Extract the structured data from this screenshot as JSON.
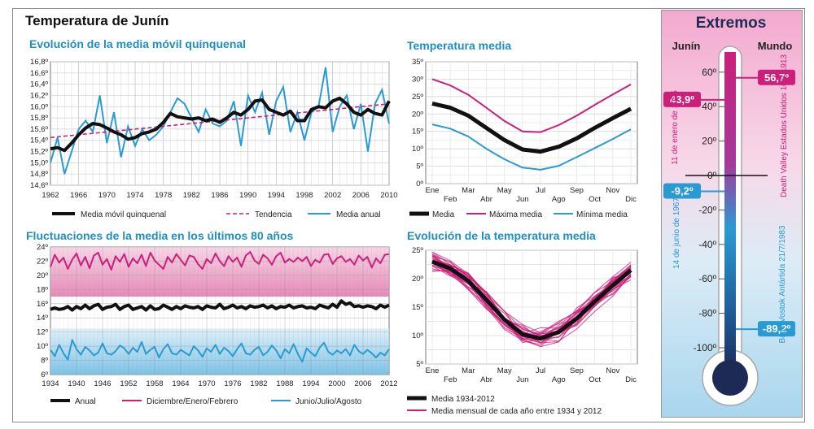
{
  "main_title": "Temperatura de Junín",
  "colors": {
    "black": "#111111",
    "pink": "#cc1f7a",
    "blue": "#2a9ad2",
    "title_blue": "#1d8fc0",
    "navy": "#1c2a55"
  },
  "chart_data": [
    {
      "id": "media_movil",
      "type": "line",
      "title": "Evolución de la media móvil quinquenal",
      "ylim": [
        14.6,
        16.8
      ],
      "y_ticks": [
        "14,6º",
        "14,8º",
        "15,0º",
        "15,2º",
        "15,4º",
        "15,6º",
        "15,8º",
        "16,0º",
        "16,2º",
        "16,4º",
        "16,6º",
        "16,8º"
      ],
      "x_ticks": [
        "1962",
        "1966",
        "1970",
        "1974",
        "1978",
        "1982",
        "1986",
        "1990",
        "1994",
        "1998",
        "2002",
        "2006",
        "2010"
      ],
      "xlim": [
        1962,
        2010
      ],
      "series": [
        {
          "name": "Media móvil quinquenal",
          "color": "#111111",
          "x": [
            1962,
            1963,
            1964,
            1965,
            1966,
            1967,
            1968,
            1969,
            1970,
            1971,
            1972,
            1973,
            1974,
            1975,
            1976,
            1977,
            1978,
            1979,
            1980,
            1981,
            1982,
            1983,
            1984,
            1985,
            1986,
            1987,
            1988,
            1989,
            1990,
            1991,
            1992,
            1993,
            1994,
            1995,
            1996,
            1997,
            1998,
            1999,
            2000,
            2001,
            2002,
            2003,
            2004,
            2005,
            2006,
            2007,
            2008,
            2009,
            2010
          ],
          "y": [
            15.25,
            15.27,
            15.22,
            15.35,
            15.5,
            15.62,
            15.7,
            15.68,
            15.62,
            15.55,
            15.5,
            15.42,
            15.45,
            15.52,
            15.55,
            15.6,
            15.72,
            15.88,
            15.82,
            15.8,
            15.78,
            15.8,
            15.75,
            15.78,
            15.72,
            15.8,
            15.9,
            15.85,
            15.95,
            16.1,
            16.12,
            15.95,
            15.9,
            15.85,
            15.92,
            15.75,
            15.75,
            15.95,
            16.0,
            15.98,
            16.1,
            16.15,
            16.05,
            15.9,
            15.85,
            15.95,
            15.88,
            15.85,
            16.1
          ]
        },
        {
          "name": "Tendencia",
          "color": "#cc1f7a",
          "x": [
            1962,
            2010
          ],
          "y": [
            15.45,
            16.05
          ]
        },
        {
          "name": "Media anual",
          "color": "#2a9ad2",
          "x": [
            1962,
            1963,
            1964,
            1965,
            1966,
            1967,
            1968,
            1969,
            1970,
            1971,
            1972,
            1973,
            1974,
            1975,
            1976,
            1977,
            1978,
            1979,
            1980,
            1981,
            1982,
            1983,
            1984,
            1985,
            1986,
            1987,
            1988,
            1989,
            1990,
            1991,
            1992,
            1993,
            1994,
            1995,
            1996,
            1997,
            1998,
            1999,
            2000,
            2001,
            2002,
            2003,
            2004,
            2005,
            2006,
            2007,
            2008,
            2009,
            2010
          ],
          "y": [
            15.0,
            15.45,
            14.8,
            15.2,
            15.6,
            15.75,
            15.55,
            16.2,
            15.35,
            15.9,
            15.1,
            15.65,
            15.3,
            15.6,
            15.4,
            15.5,
            15.65,
            15.9,
            16.15,
            16.05,
            15.8,
            15.55,
            15.95,
            15.7,
            15.65,
            15.75,
            16.1,
            15.3,
            16.2,
            15.9,
            16.25,
            15.5,
            16.1,
            16.35,
            15.55,
            15.9,
            15.4,
            15.9,
            16.0,
            16.7,
            15.55,
            16.0,
            16.2,
            15.6,
            16.05,
            15.2,
            16.05,
            16.3,
            15.7
          ]
        }
      ]
    },
    {
      "id": "temperatura_media",
      "type": "line",
      "title": "Temperatura media",
      "ylim": [
        0,
        35
      ],
      "y_ticks": [
        "0º",
        "5º",
        "10º",
        "15º",
        "20º",
        "25º",
        "30º",
        "35º"
      ],
      "categories": [
        "Ene",
        "Feb",
        "Mar",
        "Abr",
        "May",
        "Jun",
        "Jul",
        "Ago",
        "Sep",
        "Oct",
        "Nov",
        "Dic"
      ],
      "series": [
        {
          "name": "Media",
          "color": "#111111",
          "values": [
            23,
            21.8,
            19.5,
            16,
            12.5,
            9.8,
            9.2,
            10.6,
            13,
            16,
            18.8,
            21.5
          ]
        },
        {
          "name": "Máxima media",
          "color": "#cc1f7a",
          "values": [
            30,
            28.2,
            25.5,
            21.8,
            18,
            15,
            14.8,
            16.8,
            19.5,
            22.6,
            25.6,
            28.5
          ]
        },
        {
          "name": "Mínima media",
          "color": "#2a9ad2",
          "values": [
            17,
            15.8,
            13.5,
            10,
            7,
            4.6,
            4,
            5.1,
            7.6,
            10.2,
            12.8,
            15.6
          ]
        }
      ]
    },
    {
      "id": "fluctuaciones",
      "type": "line",
      "title": "Fluctuaciones de la media en los últimos 80 años",
      "ylim": [
        6,
        24
      ],
      "y_ticks": [
        "6º",
        "8º",
        "10º",
        "12º",
        "14º",
        "16º",
        "18º",
        "20º",
        "22º",
        "24º"
      ],
      "x_ticks": [
        "1934",
        "1940",
        "1946",
        "1952",
        "1958",
        "1964",
        "1970",
        "1976",
        "1982",
        "1988",
        "1994",
        "2000",
        "2006",
        "2012"
      ],
      "xlim": [
        1934,
        2012
      ],
      "series": [
        {
          "name": "Anual",
          "color": "#111111",
          "x_start": 1934,
          "values": [
            15.2,
            15.4,
            15.2,
            15.3,
            15.6,
            15.1,
            15.6,
            15.3,
            15.8,
            15.3,
            15.7,
            15.9,
            15.2,
            15.5,
            15.6,
            15.9,
            15.2,
            15.6,
            15.8,
            15.2,
            15.4,
            15.6,
            15.1,
            15.7,
            15.2,
            15.3,
            15.8,
            15.5,
            15.2,
            15.6,
            15.3,
            15.7,
            15.5,
            15.4,
            15.6,
            15.2,
            15.7,
            15.5,
            15.4,
            15.9,
            15.3,
            15.5,
            15.8,
            15.4,
            15.6,
            15.3,
            15.7,
            15.5,
            15.6,
            15.8,
            15.4,
            15.7,
            15.3,
            15.6,
            15.5,
            15.8,
            15.4,
            15.6,
            15.7,
            15.4,
            15.5,
            15.3,
            15.8,
            15.6,
            15.4,
            15.9,
            15.5,
            16.4,
            15.9,
            16.1,
            15.6,
            15.7,
            15.5,
            15.7,
            15.6,
            15.3,
            15.8,
            15.5,
            15.8
          ]
        },
        {
          "name": "Diciembre/Enero/Febrero",
          "color": "#cc1f7a",
          "x_start": 1934,
          "values": [
            21.2,
            22.9,
            21.8,
            22.5,
            20.9,
            22.2,
            23.1,
            21.4,
            22.6,
            21.0,
            22.8,
            23.2,
            21.5,
            22.3,
            20.8,
            22.7,
            21.9,
            23.0,
            21.2,
            22.4,
            21.7,
            22.9,
            21.3,
            23.2,
            22.1,
            21.5,
            20.9,
            22.6,
            21.8,
            23.0,
            22.2,
            21.4,
            22.8,
            22.6,
            21.6,
            20.9,
            22.3,
            21.7,
            23.1,
            22.0,
            21.3,
            22.7,
            21.9,
            22.5,
            21.2,
            22.8,
            23.3,
            22.1,
            21.6,
            22.9,
            22.4,
            21.5,
            22.7,
            23.2,
            21.8,
            22.3,
            21.9,
            22.5,
            22.0,
            22.6,
            21.3,
            22.2,
            21.8,
            22.9,
            23.0,
            21.6,
            22.4,
            22.7,
            21.9,
            22.3,
            21.5,
            22.8,
            22.1,
            22.6,
            21.1,
            22.4,
            21.7,
            22.9,
            23.0
          ]
        },
        {
          "name": "Junio/Julio/Agosto",
          "color": "#2a9ad2",
          "x_start": 1934,
          "values": [
            9.5,
            8.6,
            10.2,
            9.0,
            8.1,
            10.9,
            9.6,
            8.8,
            9.9,
            9.4,
            8.7,
            9.1,
            10.4,
            9.0,
            8.8,
            9.3,
            10.1,
            9.7,
            8.9,
            9.8,
            9.2,
            10.6,
            8.9,
            9.5,
            9.9,
            8.4,
            9.6,
            10.3,
            9.0,
            8.8,
            9.5,
            9.1,
            8.7,
            10.0,
            9.4,
            8.5,
            9.7,
            9.2,
            10.2,
            8.9,
            9.8,
            9.3,
            8.6,
            9.6,
            10.4,
            9.0,
            8.8,
            9.5,
            9.9,
            8.7,
            9.2,
            10.1,
            9.4,
            8.3,
            9.6,
            9.0,
            10.3,
            8.9,
            7.8,
            9.7,
            9.1,
            8.6,
            9.8,
            10.5,
            9.2,
            8.8,
            9.4,
            9.0,
            9.6,
            8.7,
            10.2,
            9.3,
            8.9,
            9.5,
            9.0,
            8.4,
            9.1,
            8.7,
            9.6
          ]
        }
      ]
    },
    {
      "id": "evolucion",
      "type": "line",
      "title": "Evolución de la temperatura media",
      "ylim": [
        5,
        25
      ],
      "y_ticks": [
        "5º",
        "10º",
        "15º",
        "20º",
        "25º"
      ],
      "categories": [
        "Ene",
        "Feb",
        "Mar",
        "Abr",
        "May",
        "Jun",
        "Jul",
        "Ago",
        "Sep",
        "Oct",
        "Nov",
        "Dic"
      ],
      "series": [
        {
          "name": "Media 1934-2012",
          "color": "#111111",
          "values": [
            23,
            21.8,
            19.6,
            16.3,
            12.8,
            10.2,
            9.5,
            10.6,
            13.0,
            16.0,
            18.8,
            21.5
          ]
        },
        {
          "name": "Media mensual de cada año entre 1934 y 2012",
          "color": "#cc1f7a",
          "spread": 1.8
        }
      ]
    }
  ],
  "extremos": {
    "title": "Extremos",
    "left_label": "Junín",
    "right_label": "Mundo",
    "scale": [
      "60º",
      "40º",
      "20º",
      "0º",
      "-20º",
      "-40º",
      "-60º",
      "-80º",
      "-100º"
    ],
    "max_junin": {
      "value": "43,9º",
      "date": "11 de enero de 1955",
      "num": 43.9
    },
    "min_junin": {
      "value": "-9,2º",
      "date": "14 de junio de 1967",
      "num": -9.2
    },
    "max_mundo": {
      "value": "56,7º",
      "place": "Death Valley Estados Unidos 10/7/1913",
      "num": 56.7
    },
    "min_mundo": {
      "value": "-89,2º",
      "place": "Base Vostok Antártida 21/7/1983",
      "num": -89.2
    }
  }
}
